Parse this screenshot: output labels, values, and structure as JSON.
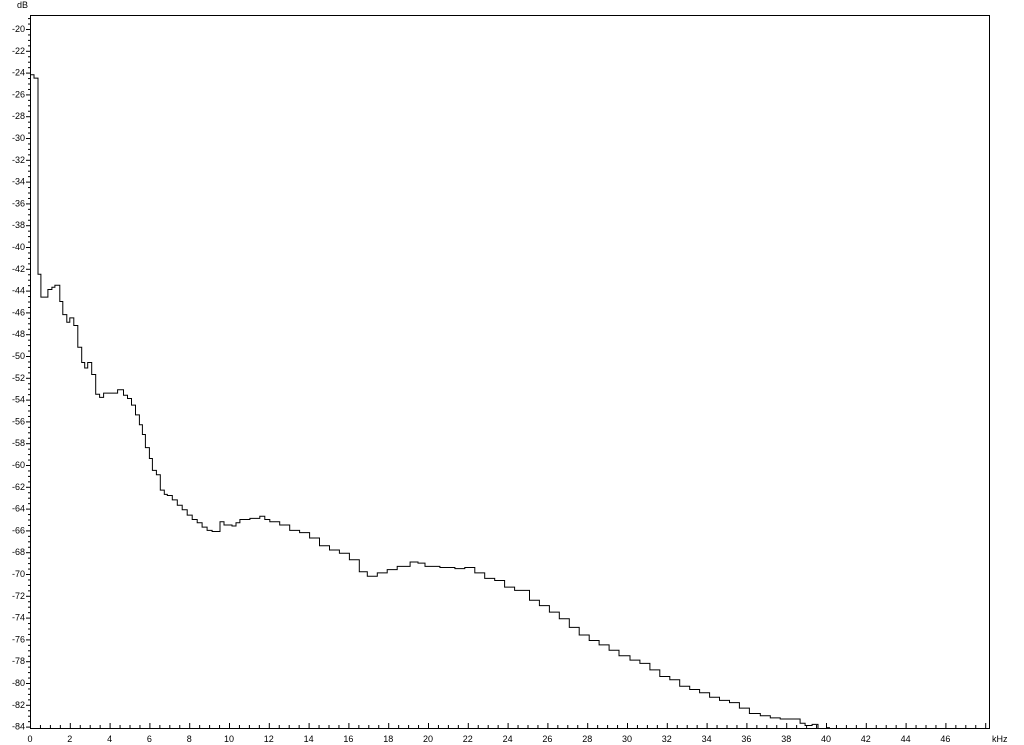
{
  "chart_data": {
    "type": "line",
    "style": "step",
    "title": "",
    "ylabel": "dB",
    "xlabel": "kHz",
    "xlim": [
      0,
      48.2
    ],
    "ylim": [
      -84.2,
      -18.7
    ],
    "grid": false,
    "line_color": "#000000",
    "x_ticks": [
      0,
      2,
      4,
      6,
      8,
      10,
      12,
      14,
      16,
      18,
      20,
      22,
      24,
      26,
      28,
      30,
      32,
      34,
      36,
      38,
      40,
      42,
      44,
      46
    ],
    "y_ticks": [
      -20,
      -22,
      -24,
      -26,
      -28,
      -30,
      -32,
      -34,
      -36,
      -38,
      -40,
      -42,
      -44,
      -46,
      -48,
      -50,
      -52,
      -54,
      -56,
      -58,
      -60,
      -62,
      -64,
      -66,
      -68,
      -70,
      -72,
      -74,
      -76,
      -78,
      -80,
      -82,
      -84
    ],
    "steps": [
      [
        0,
        -24.2
      ],
      [
        0.2,
        -24.5
      ],
      [
        0.4,
        -42.5
      ],
      [
        0.55,
        -44.6
      ],
      [
        0.9,
        -43.9
      ],
      [
        1.1,
        -43.7
      ],
      [
        1.25,
        -43.5
      ],
      [
        1.5,
        -45.0
      ],
      [
        1.65,
        -46.2
      ],
      [
        1.85,
        -46.9
      ],
      [
        2.0,
        -46.5
      ],
      [
        2.2,
        -47.2
      ],
      [
        2.4,
        -49.2
      ],
      [
        2.6,
        -50.6
      ],
      [
        2.75,
        -51.1
      ],
      [
        2.9,
        -50.6
      ],
      [
        3.1,
        -51.7
      ],
      [
        3.3,
        -53.5
      ],
      [
        3.5,
        -53.8
      ],
      [
        3.7,
        -53.4
      ],
      [
        4.4,
        -53.1
      ],
      [
        4.7,
        -53.6
      ],
      [
        4.9,
        -53.9
      ],
      [
        5.1,
        -54.5
      ],
      [
        5.3,
        -55.4
      ],
      [
        5.5,
        -56.3
      ],
      [
        5.65,
        -57.2
      ],
      [
        5.8,
        -58.4
      ],
      [
        6.0,
        -59.4
      ],
      [
        6.15,
        -60.5
      ],
      [
        6.35,
        -60.9
      ],
      [
        6.55,
        -62.3
      ],
      [
        6.75,
        -62.7
      ],
      [
        6.9,
        -62.8
      ],
      [
        7.15,
        -63.2
      ],
      [
        7.4,
        -63.7
      ],
      [
        7.65,
        -64.1
      ],
      [
        7.9,
        -64.6
      ],
      [
        8.15,
        -65.0
      ],
      [
        8.4,
        -65.3
      ],
      [
        8.65,
        -65.7
      ],
      [
        8.9,
        -66.0
      ],
      [
        9.15,
        -66.1
      ],
      [
        9.55,
        -65.2
      ],
      [
        9.75,
        -65.5
      ],
      [
        10.15,
        -65.6
      ],
      [
        10.35,
        -65.3
      ],
      [
        10.55,
        -65.0
      ],
      [
        11.05,
        -64.9
      ],
      [
        11.55,
        -64.7
      ],
      [
        11.8,
        -65.0
      ],
      [
        12.05,
        -65.2
      ],
      [
        12.55,
        -65.5
      ],
      [
        13.05,
        -66.0
      ],
      [
        13.55,
        -66.2
      ],
      [
        14.05,
        -66.7
      ],
      [
        14.55,
        -67.4
      ],
      [
        15.05,
        -67.8
      ],
      [
        15.55,
        -68.1
      ],
      [
        16.05,
        -68.7
      ],
      [
        16.55,
        -69.8
      ],
      [
        16.95,
        -70.2
      ],
      [
        17.45,
        -69.9
      ],
      [
        17.95,
        -69.6
      ],
      [
        18.45,
        -69.3
      ],
      [
        19.1,
        -68.9
      ],
      [
        19.5,
        -69.0
      ],
      [
        19.85,
        -69.3
      ],
      [
        20.6,
        -69.4
      ],
      [
        21.35,
        -69.5
      ],
      [
        21.85,
        -69.4
      ],
      [
        22.35,
        -69.9
      ],
      [
        22.85,
        -70.4
      ],
      [
        23.35,
        -70.6
      ],
      [
        23.85,
        -71.2
      ],
      [
        24.35,
        -71.5
      ],
      [
        25.1,
        -72.4
      ],
      [
        25.6,
        -72.9
      ],
      [
        26.1,
        -73.5
      ],
      [
        26.6,
        -74.1
      ],
      [
        27.1,
        -74.9
      ],
      [
        27.6,
        -75.6
      ],
      [
        28.1,
        -76.1
      ],
      [
        28.6,
        -76.5
      ],
      [
        29.1,
        -77.0
      ],
      [
        29.6,
        -77.5
      ],
      [
        30.15,
        -77.9
      ],
      [
        30.65,
        -78.2
      ],
      [
        31.15,
        -78.8
      ],
      [
        31.65,
        -79.4
      ],
      [
        32.15,
        -79.7
      ],
      [
        32.65,
        -80.3
      ],
      [
        33.15,
        -80.6
      ],
      [
        33.65,
        -80.9
      ],
      [
        34.15,
        -81.3
      ],
      [
        34.65,
        -81.6
      ],
      [
        35.15,
        -81.8
      ],
      [
        35.65,
        -82.3
      ],
      [
        36.15,
        -82.8
      ],
      [
        36.7,
        -83.0
      ],
      [
        37.2,
        -83.2
      ],
      [
        37.7,
        -83.3
      ],
      [
        38.7,
        -83.7
      ],
      [
        38.95,
        -83.9
      ],
      [
        39.3,
        -83.8
      ]
    ],
    "steps_end_khz": 39.6,
    "fragment": {
      "from_khz": 40.0,
      "to_khz": 40.2,
      "db": -84.1
    }
  }
}
